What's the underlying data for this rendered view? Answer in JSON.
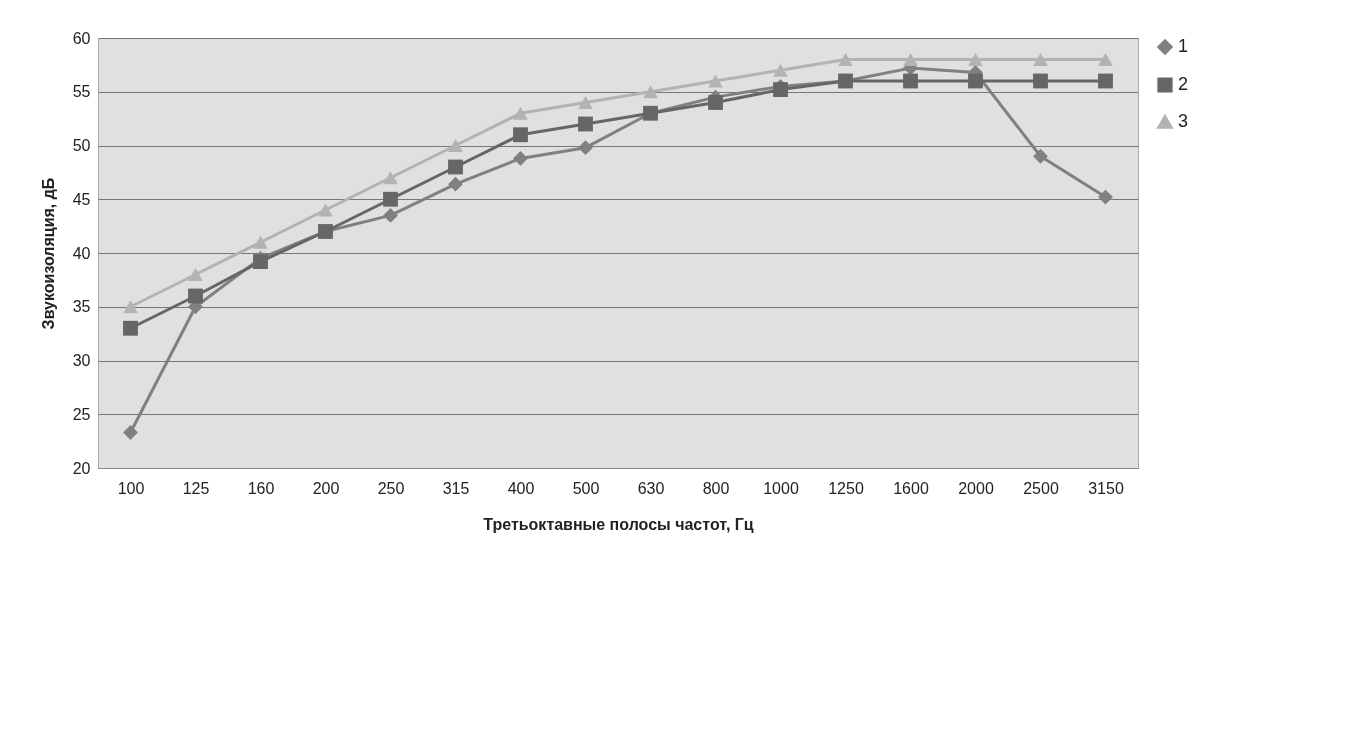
{
  "chart_data": {
    "type": "line",
    "xlabel": "Третьоктавные полосы частот, Гц",
    "ylabel": "Звукоизоляция, дБ",
    "categories": [
      "100",
      "125",
      "160",
      "200",
      "250",
      "315",
      "400",
      "500",
      "630",
      "800",
      "1000",
      "1250",
      "1600",
      "2000",
      "2500",
      "3150"
    ],
    "series": [
      {
        "name": "1",
        "color": "#808080",
        "marker": "diamond",
        "values": [
          23.3,
          35,
          39.5,
          42,
          43.5,
          46.4,
          48.8,
          49.8,
          53,
          54.5,
          55.5,
          56,
          57.2,
          56.8,
          49,
          45.2
        ]
      },
      {
        "name": "2",
        "color": "#666666",
        "marker": "square",
        "values": [
          33,
          36,
          39.2,
          42,
          45,
          48,
          51,
          52,
          53,
          54,
          55.2,
          56,
          56,
          56,
          56,
          56
        ]
      },
      {
        "name": "3",
        "color": "#b3b3b3",
        "marker": "triangle",
        "values": [
          35,
          38,
          41,
          44,
          47,
          50,
          53,
          54,
          55,
          56,
          57,
          58,
          58,
          58,
          58,
          58
        ]
      }
    ],
    "ylim": [
      20,
      60
    ],
    "yticks": [
      20,
      25,
      30,
      35,
      40,
      45,
      50,
      55,
      60
    ],
    "grid": "y",
    "legend": "right"
  }
}
